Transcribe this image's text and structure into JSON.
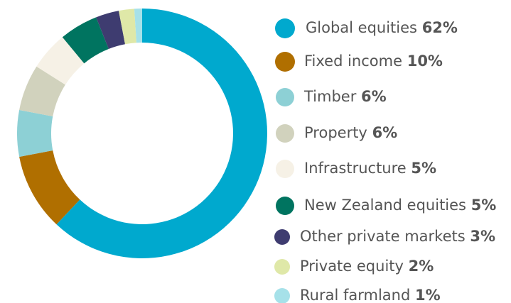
{
  "chart_data": {
    "type": "donut",
    "categories": [
      "Global equities",
      "Fixed income",
      "Timber",
      "Property",
      "Infrastructure",
      "New Zealand equities",
      "Other private markets",
      "Private equity",
      "Rural farmland"
    ],
    "values": [
      62,
      10,
      6,
      6,
      5,
      5,
      3,
      2,
      1
    ],
    "value_labels": [
      "62%",
      "10%",
      "6%",
      "6%",
      "5%",
      "5%",
      "3%",
      "2%",
      "1%"
    ],
    "colors": [
      "#00a9ce",
      "#b06f00",
      "#8dd0d5",
      "#d1d2bd",
      "#f6f1e6",
      "#007460",
      "#3e3c70",
      "#dfe8a8",
      "#a6e1e9"
    ]
  }
}
